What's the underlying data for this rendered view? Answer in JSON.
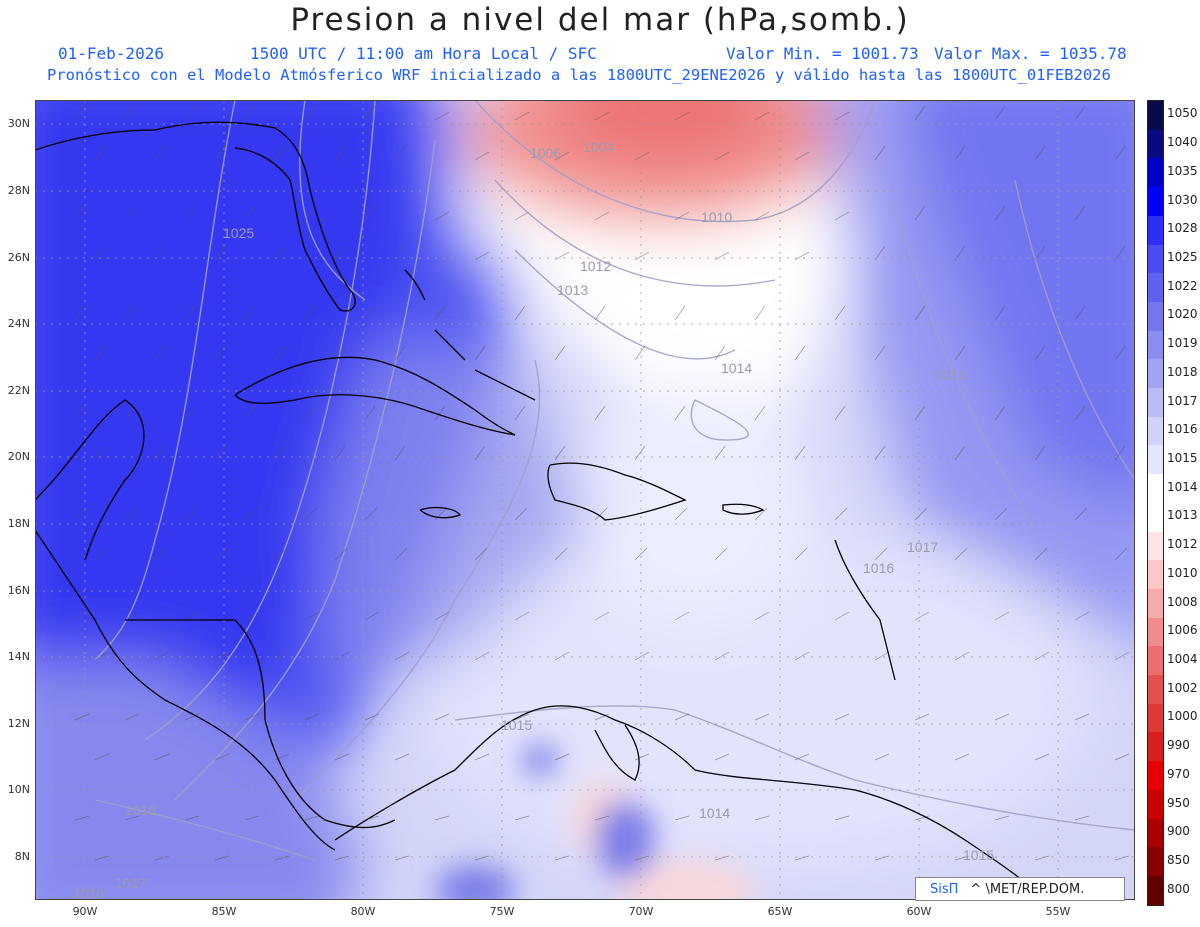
{
  "header": {
    "title": "Presion a nivel del mar (hPa,somb.)",
    "date": "01-Feb-2026",
    "time": "1500 UTC / 11:00 am Hora Local / SFC",
    "vmin": "Valor Min. = 1001.73",
    "vmax": "Valor Max. = 1035.78",
    "model": "Pronóstico con el Modelo Atmósferico WRF inicializado a las 1800UTC_29ENE2026 y válido hasta las  1800UTC_01FEB2026"
  },
  "axes": {
    "y_ticks": [
      "30N",
      "28N",
      "26N",
      "24N",
      "22N",
      "20N",
      "18N",
      "16N",
      "14N",
      "12N",
      "10N",
      "8N"
    ],
    "x_ticks": [
      "90W",
      "85W",
      "80W",
      "75W",
      "70W",
      "65W",
      "60W",
      "55W"
    ]
  },
  "colorbar": {
    "labels": [
      "1050",
      "1040",
      "1035",
      "1030",
      "1028",
      "1025",
      "1022",
      "1020",
      "1019",
      "1018",
      "1017",
      "1016",
      "1015",
      "1014",
      "1013",
      "1012",
      "1010",
      "1008",
      "1006",
      "1004",
      "1002",
      "1000",
      "990",
      "970",
      "950",
      "900",
      "850",
      "800"
    ],
    "colors": [
      "#0a0a4a",
      "#0a0a80",
      "#0000c8",
      "#0000ff",
      "#2e2ef5",
      "#4a4ef0",
      "#5e62ee",
      "#7476ee",
      "#8a8cf0",
      "#a2a4f2",
      "#babcf6",
      "#d0d2f8",
      "#e4e6fc",
      "#ffffff",
      "#ffffff",
      "#fde4e4",
      "#fac8c8",
      "#f6aaaa",
      "#f08c8c",
      "#ea6e6e",
      "#e45050",
      "#de3838",
      "#d82020",
      "#e80000",
      "#c80000",
      "#a80000",
      "#880000",
      "#600000"
    ]
  },
  "contour_labels": [
    "1025",
    "1006",
    "1004",
    "1010",
    "1012",
    "1013",
    "1014",
    "1016",
    "1017",
    "1016",
    "1015",
    "1018",
    "1014",
    "1015",
    "1017",
    "1016"
  ],
  "credit": {
    "brand": "SisΠ",
    "rest": "^ \\MET/REP.DOM."
  }
}
